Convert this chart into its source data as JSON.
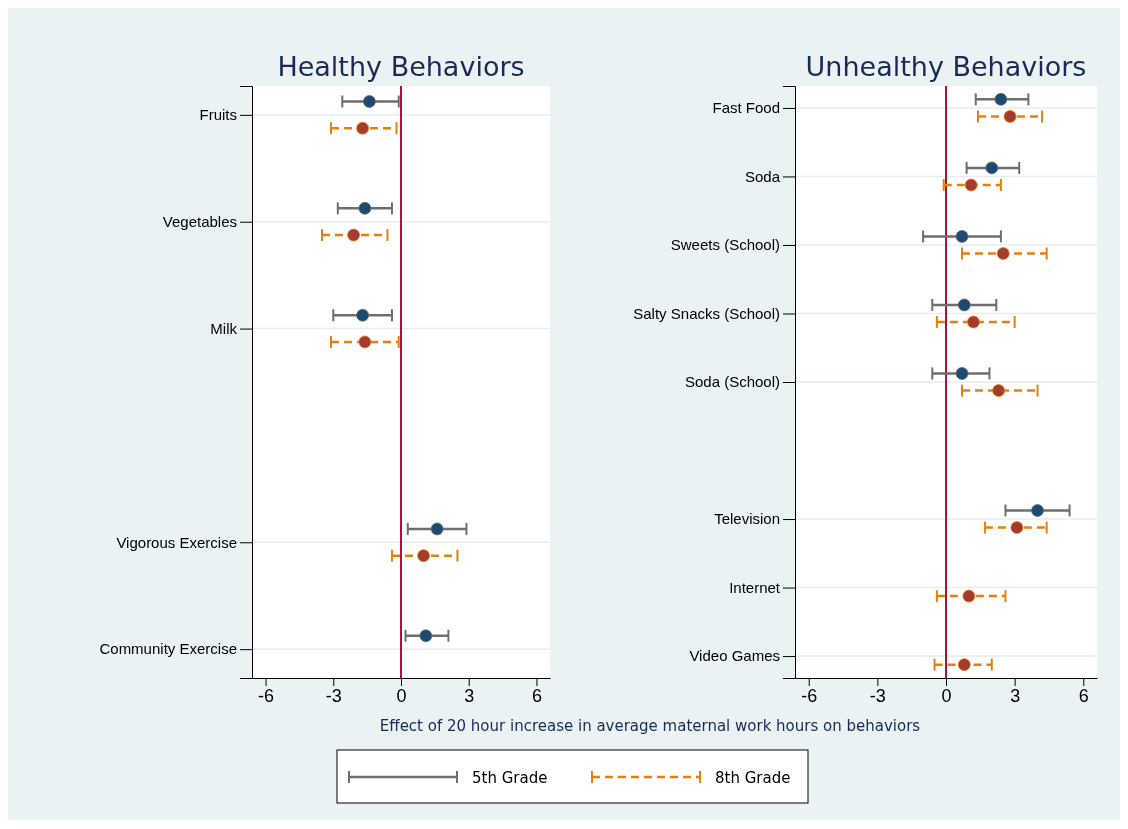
{
  "chart_data": [
    {
      "type": "scatter",
      "orientation": "horizontal",
      "title": "Healthy Behaviors",
      "xlabel": "Effect of 20 hour increase in average maternal work hours on behaviors",
      "categories": [
        "Fruits",
        "Vegetables",
        "Milk",
        null,
        "Vigorous Exercise",
        "Community Exercise"
      ],
      "xlim": [
        -6.6,
        6.6
      ],
      "xticks": [
        -6,
        -3,
        0,
        3,
        6
      ],
      "grid": "y",
      "legend": "bottom",
      "marker": "circle",
      "ref_lines": [
        {
          "axis": "x",
          "value": 0,
          "color": "#b0103a"
        }
      ],
      "series": [
        {
          "name": "5th Grade",
          "color": "#6e6e6e",
          "line_style": "solid",
          "values": [
            -1.4,
            -1.6,
            -1.7,
            null,
            1.6,
            1.1
          ],
          "errors": [
            [
              -2.6,
              -0.1
            ],
            [
              -2.8,
              -0.4
            ],
            [
              -3.0,
              -0.4
            ],
            null,
            [
              0.3,
              2.9
            ],
            [
              0.2,
              2.1
            ]
          ]
        },
        {
          "name": "8th Grade",
          "color": "#e8800f",
          "line_style": "dashed",
          "values": [
            -1.7,
            -2.1,
            -1.6,
            null,
            1.0,
            null
          ],
          "errors": [
            [
              -3.1,
              -0.2
            ],
            [
              -3.5,
              -0.6
            ],
            [
              -3.1,
              -0.1
            ],
            null,
            [
              -0.4,
              2.5
            ],
            null
          ]
        }
      ]
    },
    {
      "type": "scatter",
      "orientation": "horizontal",
      "title": "Unhealthy Behaviors",
      "categories": [
        "Fast Food",
        "Soda",
        "Sweets (School)",
        "Salty Snacks (School)",
        "Soda (School)",
        null,
        "Television",
        "Internet",
        "Video Games"
      ],
      "xlim": [
        -6.6,
        6.6
      ],
      "xticks": [
        -6,
        -3,
        0,
        3,
        6
      ],
      "grid": "y",
      "marker": "circle",
      "ref_lines": [
        {
          "axis": "x",
          "value": 0,
          "color": "#b0103a"
        }
      ],
      "series": [
        {
          "color": "#6e6e6e",
          "line_style": "solid",
          "values": [
            2.4,
            2.0,
            0.7,
            0.8,
            0.7,
            null,
            4.0,
            null,
            null
          ],
          "errors": [
            [
              1.3,
              3.6
            ],
            [
              0.9,
              3.2
            ],
            [
              -1.0,
              2.4
            ],
            [
              -0.6,
              2.2
            ],
            [
              -0.6,
              1.9
            ],
            null,
            [
              2.6,
              5.4
            ],
            null,
            null
          ]
        },
        {
          "color": "#e8800f",
          "line_style": "dashed",
          "values": [
            2.8,
            1.1,
            2.5,
            1.2,
            2.3,
            null,
            3.1,
            1.0,
            0.8
          ],
          "errors": [
            [
              1.4,
              4.2
            ],
            [
              -0.1,
              2.4
            ],
            [
              0.7,
              4.4
            ],
            [
              -0.4,
              3.0
            ],
            [
              0.7,
              4.0
            ],
            null,
            [
              1.7,
              4.4
            ],
            [
              -0.4,
              2.6
            ],
            [
              -0.5,
              2.0
            ]
          ]
        }
      ]
    }
  ]
}
